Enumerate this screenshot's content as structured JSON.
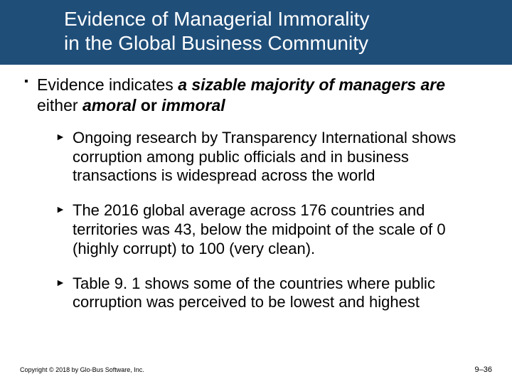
{
  "colors": {
    "title_band_bg": "#1f4e79",
    "text": "#000000",
    "slide_bg": "#ffffff"
  },
  "title": {
    "line1": "Evidence of Managerial Immorality",
    "line2": "in the Global Business Community",
    "fontsize": 28
  },
  "content": {
    "bullet1": {
      "seg1": "Evidence indicates ",
      "seg2": "a sizable majority of managers are",
      "seg3": " either ",
      "seg4": "amoral",
      "seg5": " or ",
      "seg6": "immoral",
      "fontsize": 23
    },
    "sub": [
      "Ongoing research by Transparency International shows corruption among public officials and in business transactions is widespread across the world",
      "The 2016 global average across 176 countries and territories was 43, below the midpoint of the scale of 0 (highly corrupt) to 100 (very clean).",
      "Table 9. 1 shows some of the countries where public corruption was perceived to be lowest and highest"
    ],
    "sub_fontsize": 22
  },
  "footer": {
    "copyright": "Copyright © 2018 by Glo-Bus Software, Inc.",
    "pagenum": "9–36"
  }
}
